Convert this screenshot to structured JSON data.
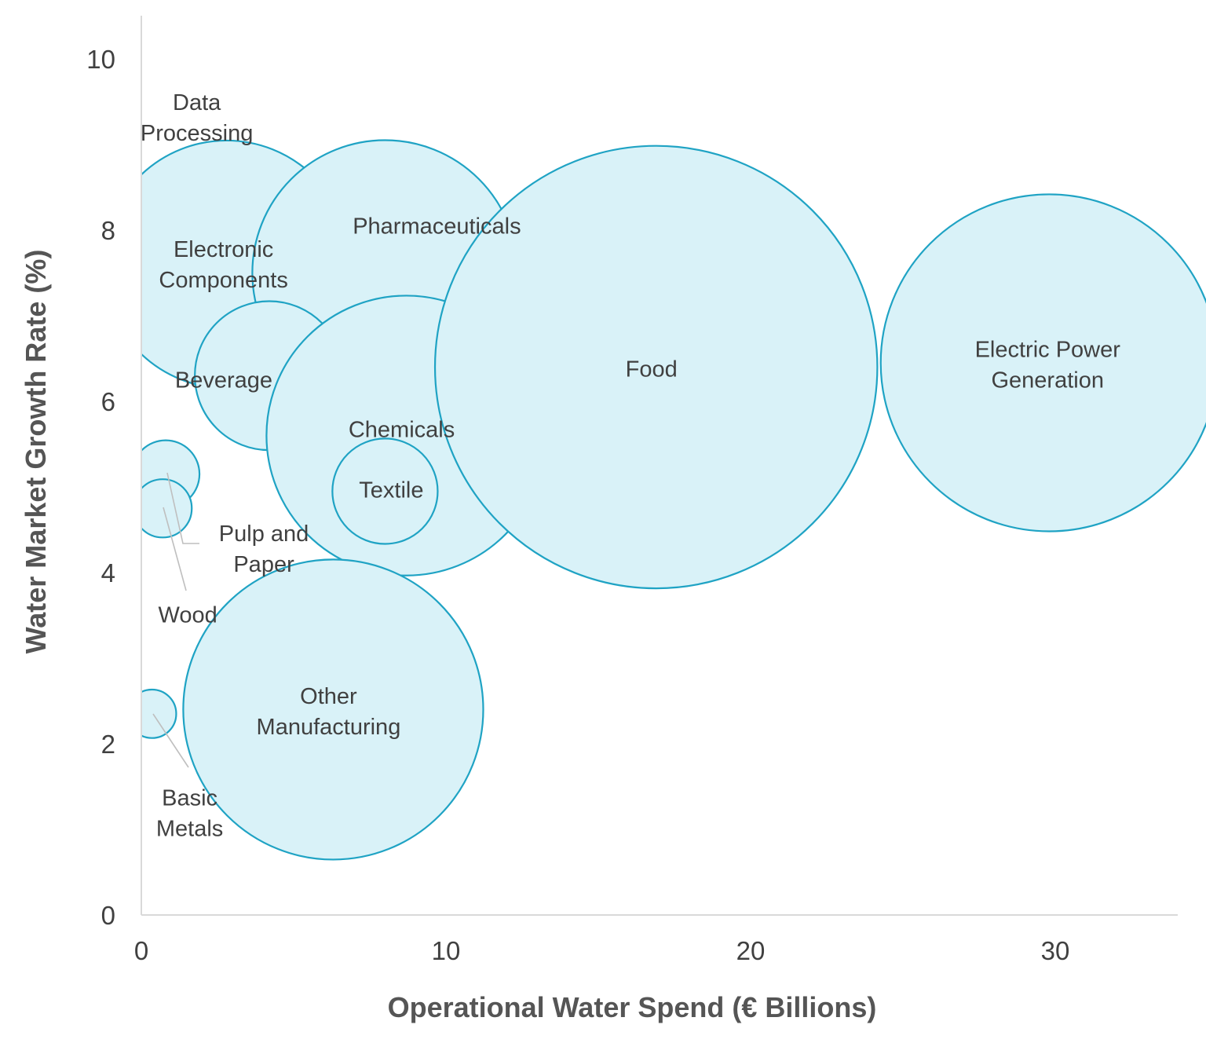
{
  "chart_data": {
    "type": "bubble",
    "title": "",
    "xlabel": "Operational Water Spend (€ Billions)",
    "ylabel": "Water Market Growth Rate (%)",
    "xlim": [
      0,
      34
    ],
    "ylim": [
      0,
      10.5
    ],
    "xticks": [
      0,
      10,
      20,
      30
    ],
    "yticks": [
      0,
      2,
      4,
      6,
      8,
      10
    ],
    "grid": false,
    "legend": "none",
    "colors": {
      "fill": "#d9f2f8",
      "stroke": "#1fa3c4",
      "axis": "#d9d9d9",
      "text": "#404040"
    },
    "points": [
      {
        "label": [
          "Data",
          "Processing"
        ],
        "x": 2.8,
        "y": 8.6,
        "size": 0.8
      },
      {
        "label": [
          "Electronic",
          "Components"
        ],
        "x": 2.8,
        "y": 7.6,
        "size": 47
      },
      {
        "label": [
          "Pharmaceuticals"
        ],
        "x": 8.0,
        "y": 7.5,
        "size": 54
      },
      {
        "label": [
          "Beverage"
        ],
        "x": 4.2,
        "y": 6.3,
        "size": 17
      },
      {
        "label": [
          "Chemicals"
        ],
        "x": 8.7,
        "y": 5.6,
        "size": 60
      },
      {
        "label": [
          "Textile"
        ],
        "x": 8.0,
        "y": 4.95,
        "size": 8.5
      },
      {
        "label": [
          "Food"
        ],
        "x": 16.9,
        "y": 6.4,
        "size": 150
      },
      {
        "label": [
          "Electric Power",
          "Generation"
        ],
        "x": 29.8,
        "y": 6.45,
        "size": 87
      },
      {
        "label": [
          "Pulp and",
          "Paper"
        ],
        "x": 0.8,
        "y": 5.15,
        "size": 3.5
      },
      {
        "label": [
          "Wood"
        ],
        "x": 0.7,
        "y": 4.75,
        "size": 2.6
      },
      {
        "label": [
          "Other",
          "Manufacturing"
        ],
        "x": 6.3,
        "y": 2.4,
        "size": 69
      },
      {
        "label": [
          "Basic",
          "Metals"
        ],
        "x": 0.35,
        "y": 2.35,
        "size": 1.8
      }
    ]
  }
}
